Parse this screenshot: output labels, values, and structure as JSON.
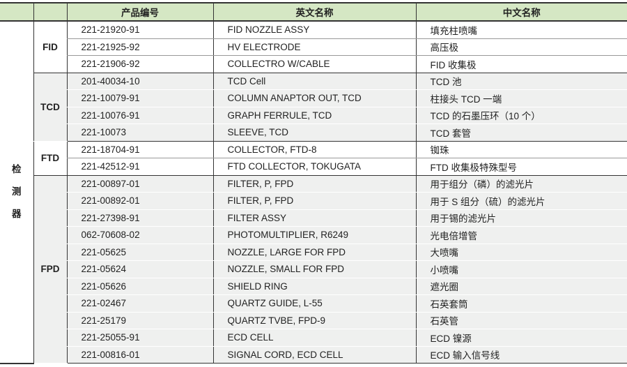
{
  "header": {
    "col_blank1": "",
    "col_blank2": "",
    "part_no": "产品编号",
    "english_name": "英文名称",
    "chinese_name": "中文名称"
  },
  "category": "检\n测\n器",
  "category_chars": [
    "检",
    "测",
    "器"
  ],
  "colors": {
    "header_bg": "#d5e7c4",
    "alt_group_bg": "#eff0ef"
  },
  "groups": [
    {
      "name": "FID",
      "shaded": false,
      "rows": [
        [
          "221-21920-91",
          "FID NOZZLE ASSY",
          "填充柱喷嘴"
        ],
        [
          "221-21925-92",
          "HV ELECTRODE",
          "高压极"
        ],
        [
          "221-21906-92",
          "COLLECTRO W/CABLE",
          "FID 收集极"
        ]
      ]
    },
    {
      "name": "TCD",
      "shaded": true,
      "rows": [
        [
          "201-40034-10",
          "TCD Cell",
          "TCD 池"
        ],
        [
          "221-10079-91",
          "COLUMN ANAPTOR OUT, TCD",
          "柱接头 TCD 一端"
        ],
        [
          "221-10076-91",
          "GRAPH FERRULE, TCD",
          "TCD 的石墨压环（10 个）"
        ],
        [
          "221-10073",
          "SLEEVE, TCD",
          "TCD 套管"
        ]
      ]
    },
    {
      "name": "FTD",
      "shaded": false,
      "rows": [
        [
          "221-18704-91",
          "COLLECTOR, FTD-8",
          "铷珠"
        ],
        [
          "221-42512-91",
          "FTD COLLECTOR, TOKUGATA",
          "FTD 收集极特殊型号"
        ]
      ]
    },
    {
      "name": "FPD",
      "shaded": true,
      "rows": [
        [
          "221-00897-01",
          "FILTER, P, FPD",
          "用于组分（磷）的滤光片"
        ],
        [
          "221-00892-01",
          "FILTER, P, FPD",
          "用于 S 组分（硫）的滤光片"
        ],
        [
          "221-27398-91",
          "FILTER ASSY",
          "用于锡的滤光片"
        ],
        [
          "062-70608-02",
          "PHOTOMULTIPLIER, R6249",
          "光电倍增管"
        ],
        [
          "221-05625",
          "NOZZLE, LARGE FOR FPD",
          "大喷嘴"
        ],
        [
          "221-05624",
          "NOZZLE, SMALL FOR FPD",
          "小喷嘴"
        ],
        [
          "221-05626",
          "SHIELD RING",
          "遮光圈"
        ],
        [
          "221-02467",
          "QUARTZ GUIDE, L-55",
          "石英套筒"
        ],
        [
          "221-25179",
          "QUARTZ TVBE, FPD-9",
          "石英管"
        ],
        [
          "221-25055-91",
          "ECD CELL",
          "ECD 镍源"
        ],
        [
          "221-00816-01",
          "SIGNAL CORD, ECD CELL",
          "ECD 输入信号线"
        ]
      ]
    }
  ]
}
